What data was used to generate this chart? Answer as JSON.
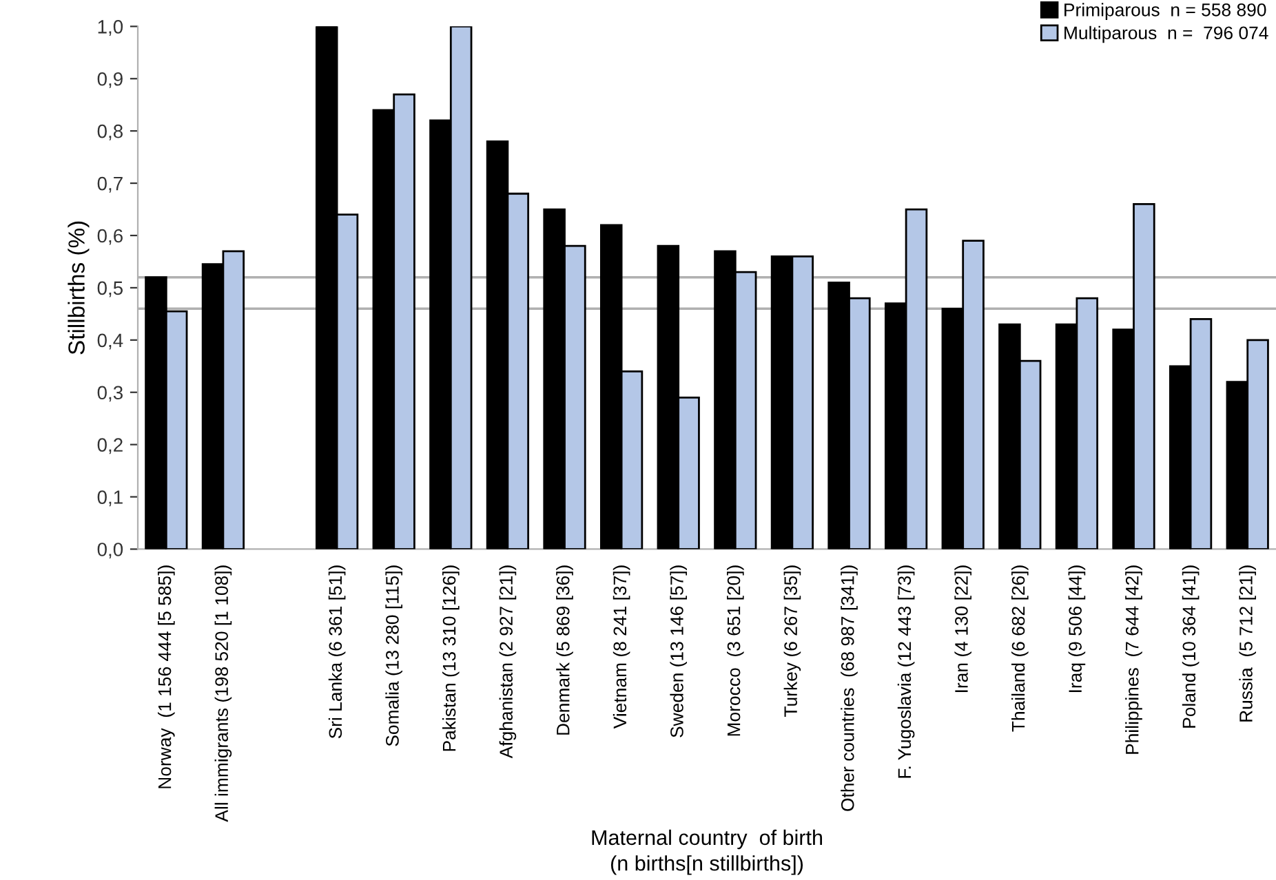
{
  "chart_data": {
    "type": "bar",
    "ylabel": "Stillbirths (%)",
    "xlabel": "Maternal country  of birth\n(n births[n stillbirths])",
    "categories": [
      "Norway  (1 156 444 [5 585])",
      "All immigrants (198 520 [1 108])",
      null,
      "Sri Lanka (6 361 [51])",
      "Somalia (13 280 [115])",
      "Pakistan (13 310 [126])",
      "Afghanistan (2 927 [21])",
      "Denmark (5 869 [36])",
      "Vietnam (8 241 [37])",
      "Sweden (13 146 [57])",
      "Morocco  (3 651 [20])",
      "Turkey (6 267 [35])",
      "Other countries  (68 987 [341])",
      "F. Yugoslavia (12 443 [73])",
      "Iran (4 130 [22])",
      "Thailand (6 682 [26])",
      "Iraq (9 506 [44])",
      "Philippines  (7 644 [42])",
      "Poland (10 364 [41])",
      "Russia  (5 712 [21])"
    ],
    "series": [
      {
        "name": "Primiparous  n = 558 890",
        "color": "#000000",
        "values": [
          0.52,
          0.545,
          null,
          1.0,
          0.84,
          0.82,
          0.78,
          0.65,
          0.62,
          0.58,
          0.57,
          0.56,
          0.51,
          0.47,
          0.46,
          0.43,
          0.43,
          0.42,
          0.35,
          0.32
        ]
      },
      {
        "name": "Multiparous  n =  796 074",
        "color": "#b4c7e7",
        "values": [
          0.455,
          0.57,
          null,
          0.64,
          0.87,
          1.0,
          0.68,
          0.58,
          0.34,
          0.29,
          0.53,
          0.56,
          0.48,
          0.65,
          0.59,
          0.36,
          0.48,
          0.66,
          0.44,
          0.4
        ]
      }
    ],
    "ylim": [
      0,
      1.0
    ],
    "yticks": [
      {
        "value": 0,
        "label": "0,0"
      },
      {
        "value": 0.1,
        "label": "0,1"
      },
      {
        "value": 0.2,
        "label": "0,2"
      },
      {
        "value": 0.3,
        "label": "0,3"
      },
      {
        "value": 0.4,
        "label": "0,4"
      },
      {
        "value": 0.5,
        "label": "0,5"
      },
      {
        "value": 0.6,
        "label": "0,6"
      },
      {
        "value": 0.7,
        "label": "0,7"
      },
      {
        "value": 0.8,
        "label": "0,8"
      },
      {
        "value": 0.9,
        "label": "0,9"
      },
      {
        "value": 1.0,
        "label": "1,0"
      }
    ],
    "ref_lines": [
      {
        "axis": "y",
        "value": 0.52,
        "color": "#b0b0b0"
      },
      {
        "axis": "y",
        "value": 0.46,
        "color": "#b0b0b0"
      }
    ],
    "grid": false,
    "legend": "top right"
  }
}
